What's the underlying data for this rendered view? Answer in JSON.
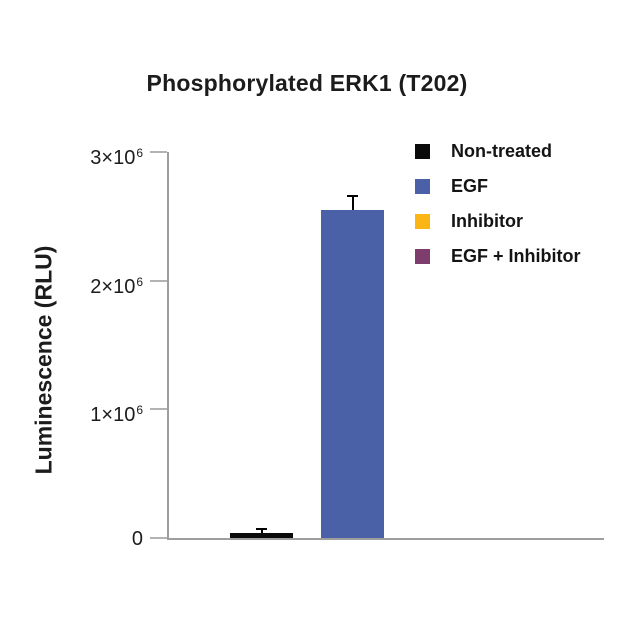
{
  "page": {
    "background": "#ffffff"
  },
  "chart_data": {
    "type": "bar",
    "title": "Phosphorylated ERK1 (T202)",
    "ylabel": "Luminescence (RLU)",
    "xlabel": "",
    "categories": [
      "Non-treated",
      "EGF",
      "Inhibitor",
      "EGF + Inhibitor"
    ],
    "values": [
      40000,
      2550000,
      0,
      0
    ],
    "errors": [
      20000,
      100000,
      0,
      0
    ],
    "bar_colors": [
      "#0a0a0a",
      "#4a60a7",
      "#fbb615",
      "#7d3e6d"
    ],
    "ylim": [
      0,
      3000000
    ],
    "yticks": [
      0,
      1000000,
      2000000,
      3000000
    ],
    "ytick_labels": [
      "0",
      "1×10⁶",
      "2×10⁶",
      "3×10⁶"
    ],
    "xtick_labels": [],
    "grid": false,
    "legend": {
      "position": "upper-right",
      "items": [
        {
          "label": "Non-treated",
          "color": "#0a0a0a"
        },
        {
          "label": "EGF",
          "color": "#4a60a7"
        },
        {
          "label": "Inhibitor",
          "color": "#fbb615"
        },
        {
          "label": "EGF + Inhibitor",
          "color": "#7d3e6d"
        }
      ]
    },
    "error_bar_color": "#000000",
    "axis_color": "#9e9e9e",
    "tick_color": "#b3b3b3",
    "text_color": "#1c1c1c"
  }
}
